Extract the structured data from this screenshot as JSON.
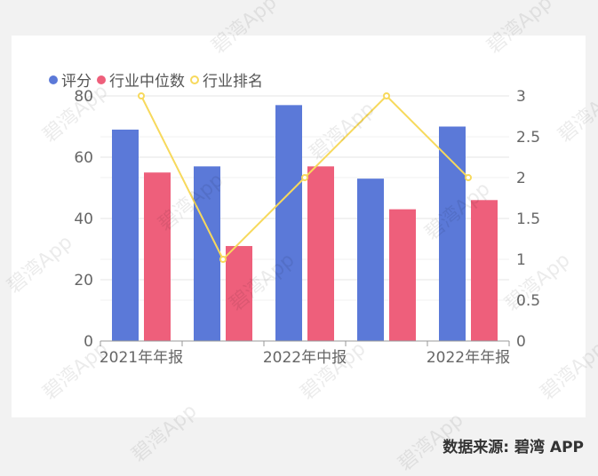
{
  "source_label": "数据来源: 碧湾 APP",
  "watermark": "碧湾App",
  "colors": {
    "score": "#5b79d8",
    "median": "#ee5f7b",
    "rank": "#f7d95c",
    "grid": "#e6e6e6",
    "axis_text": "#666666"
  },
  "chart_data": {
    "type": "bar",
    "categories": [
      "2021年年报",
      "",
      "2022年中报",
      "",
      "2022年年报"
    ],
    "category_values": [
      {
        "score": 69,
        "median": 55,
        "rank": 3
      },
      {
        "score": 57,
        "median": 31,
        "rank": 1
      },
      {
        "score": 77,
        "median": 57,
        "rank": 2
      },
      {
        "score": 53,
        "median": 43,
        "rank": 3
      },
      {
        "score": 70,
        "median": 46,
        "rank": 2
      }
    ],
    "series": [
      {
        "name": "评分",
        "type": "bar",
        "axis": "left",
        "values": [
          69,
          57,
          77,
          53,
          70
        ]
      },
      {
        "name": "行业中位数",
        "type": "bar",
        "axis": "left",
        "values": [
          55,
          31,
          57,
          43,
          46
        ]
      },
      {
        "name": "行业排名",
        "type": "line",
        "axis": "right",
        "values": [
          3,
          1,
          2,
          3,
          2
        ]
      }
    ],
    "y_left": {
      "min": 0,
      "max": 80,
      "ticks": [
        "0",
        "20",
        "40",
        "60",
        "80"
      ]
    },
    "y_right": {
      "min": 0,
      "max": 3,
      "ticks": [
        "0",
        "0.5",
        "1",
        "1.5",
        "2",
        "2.5",
        "3"
      ]
    },
    "grid": true,
    "legend_position": "top-left"
  }
}
